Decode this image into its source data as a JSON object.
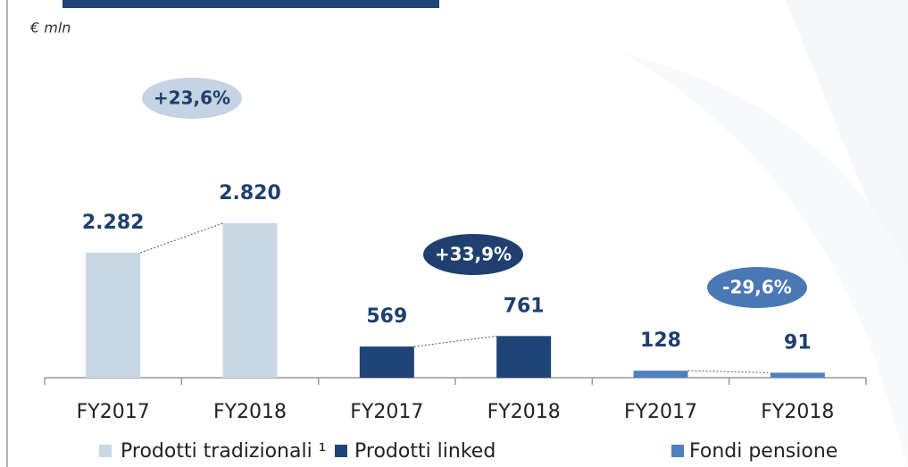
{
  "chart_data": {
    "type": "bar",
    "subtitle": "€ mln",
    "categories": [
      "FY2017",
      "FY2018",
      "FY2017",
      "FY2018",
      "FY2017",
      "FY2018"
    ],
    "series": [
      {
        "name": "Prodotti tradizionali ¹",
        "color": "#c9d7e5",
        "values": [
          2282,
          2820,
          null,
          null,
          null,
          null
        ],
        "value_labels": [
          "2.282",
          "2.820",
          null,
          null,
          null,
          null
        ]
      },
      {
        "name": "Prodotti linked",
        "color": "#1f4478",
        "values": [
          null,
          null,
          569,
          761,
          null,
          null
        ],
        "value_labels": [
          null,
          null,
          "569",
          "761",
          null,
          null
        ]
      },
      {
        "name": "Fondi pensione",
        "color": "#4f81bd",
        "values": [
          null,
          null,
          null,
          null,
          128,
          91
        ],
        "value_labels": [
          null,
          null,
          null,
          null,
          "128",
          "91"
        ]
      }
    ],
    "annotations": [
      {
        "text": "+23,6%"
      },
      {
        "text": "+33,9%"
      },
      {
        "text": "-29,6%"
      }
    ],
    "ylim": [
      0,
      3000
    ],
    "legend": "bottom"
  }
}
